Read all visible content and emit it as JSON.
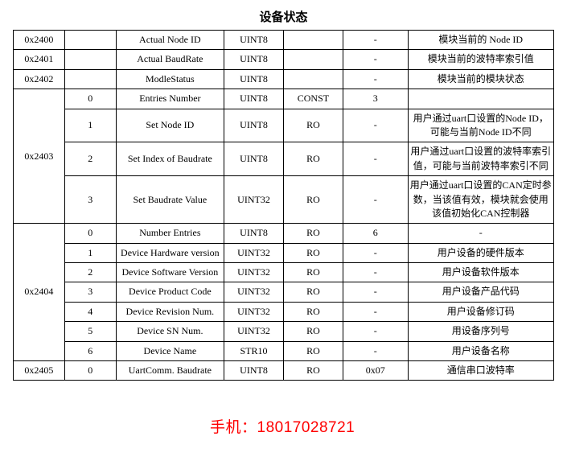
{
  "title": "设备状态",
  "watermark": "手机：18017028721",
  "columns": [
    "addr",
    "sub",
    "name",
    "type",
    "access",
    "default",
    "desc"
  ],
  "groups": [
    {
      "addr": "0x2400",
      "rows": [
        {
          "sub": "",
          "name": "Actual Node ID",
          "type": "UINT8",
          "access": "",
          "default": "-",
          "desc": "模块当前的 Node ID"
        }
      ]
    },
    {
      "addr": "0x2401",
      "rows": [
        {
          "sub": "",
          "name": "Actual BaudRate",
          "type": "UINT8",
          "access": "",
          "default": "-",
          "desc": "模块当前的波特率索引值"
        }
      ]
    },
    {
      "addr": "0x2402",
      "rows": [
        {
          "sub": "",
          "name": "ModleStatus",
          "type": "UINT8",
          "access": "",
          "default": "-",
          "desc": "模块当前的模块状态"
        }
      ]
    },
    {
      "addr": "0x2403",
      "rows": [
        {
          "sub": "0",
          "name": "Entries Number",
          "type": "UINT8",
          "access": "CONST",
          "default": "3",
          "desc": ""
        },
        {
          "sub": "1",
          "name": "Set Node ID",
          "type": "UINT8",
          "access": "RO",
          "default": "-",
          "desc": "用户通过uart口设置的Node ID，可能与当前Node ID不同"
        },
        {
          "sub": "2",
          "name": "Set Index of Baudrate",
          "type": "UINT8",
          "access": "RO",
          "default": "-",
          "desc": "用户通过uart口设置的波特率索引值，可能与当前波特率索引不同"
        },
        {
          "sub": "3",
          "name": "Set Baudrate Value",
          "type": "UINT32",
          "access": "RO",
          "default": "-",
          "desc": "用户通过uart口设置的CAN定时参数，当该值有效，模块就会使用该值初始化CAN控制器"
        }
      ]
    },
    {
      "addr": "0x2404",
      "rows": [
        {
          "sub": "0",
          "name": "Number Entries",
          "type": "UINT8",
          "access": "RO",
          "default": "6",
          "desc": "-"
        },
        {
          "sub": "1",
          "name": "Device Hardware version",
          "type": "UINT32",
          "access": "RO",
          "default": "-",
          "desc": "用户设备的硬件版本"
        },
        {
          "sub": "2",
          "name": "Device Software Version",
          "type": "UINT32",
          "access": "RO",
          "default": "-",
          "desc": "用户设备软件版本"
        },
        {
          "sub": "3",
          "name": "Device Product Code",
          "type": "UINT32",
          "access": "RO",
          "default": "-",
          "desc": "用户设备产品代码"
        },
        {
          "sub": "4",
          "name": "Device Revision Num.",
          "type": "UINT32",
          "access": "RO",
          "default": "-",
          "desc": "用户设备修订码"
        },
        {
          "sub": "5",
          "name": "Device SN Num.",
          "type": "UINT32",
          "access": "RO",
          "default": "-",
          "desc": "用设备序列号"
        },
        {
          "sub": "6",
          "name": "Device Name",
          "type": "STR10",
          "access": "RO",
          "default": "-",
          "desc": "用户设备名称"
        }
      ]
    },
    {
      "addr": "0x2405",
      "rows": [
        {
          "sub": "0",
          "name": "UartComm. Baudrate",
          "type": "UINT8",
          "access": "RO",
          "default": "0x07",
          "desc": "通信串口波特率"
        }
      ]
    }
  ]
}
